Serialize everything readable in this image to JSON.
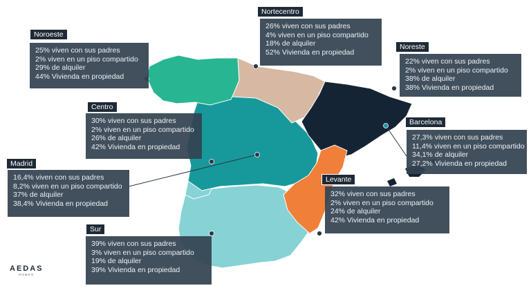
{
  "colors": {
    "noroeste": "#27b592",
    "nortecentro": "#d7b8a3",
    "noreste": "#152434",
    "centro": "#17999b",
    "levante": "#f07f39",
    "sur": "#86d2d5",
    "box": "#344351",
    "line": "#2b3a48"
  },
  "regions": [
    {
      "key": "noroeste",
      "tag": "Noroeste",
      "lines": [
        "25% viven con sus padres",
        "2% viven en un piso compartido",
        "29% de alquiler",
        "44% Vivienda en propiedad"
      ]
    },
    {
      "key": "nortecentro",
      "tag": "Nortecentro",
      "lines": [
        "26% viven con sus padres",
        "4% viven en un piso compartido",
        "18% de alquiler",
        "52% Vivienda en propiedad"
      ]
    },
    {
      "key": "noreste",
      "tag": "Noreste",
      "lines": [
        "22% viven con sus padres",
        "2% viven en un piso compartido",
        "38% de alquiler",
        "38% Vivienda en propiedad"
      ]
    },
    {
      "key": "centro",
      "tag": "Centro",
      "lines": [
        "30% viven con sus padres",
        "2% viven en un piso compartido",
        "26% de alquiler",
        "42% Vivienda en propiedad"
      ]
    },
    {
      "key": "barcelona",
      "tag": "Barcelona",
      "lines": [
        "27,3% viven con sus padres",
        "11,4% viven en un piso compartido",
        "34,1% de alquiler",
        "27,2% Vivienda en propiedad"
      ]
    },
    {
      "key": "madrid",
      "tag": "Madrid",
      "lines": [
        "16,4% viven con sus padres",
        "8,2% viven en un piso compartido",
        "37% de alquiler",
        "38,4% Vivienda en propiedad"
      ]
    },
    {
      "key": "levante",
      "tag": "Levante",
      "lines": [
        "32% viven con sus padres",
        "2% viven en un piso compartido",
        "24% de alquiler",
        "42% Vivienda en propiedad"
      ]
    },
    {
      "key": "sur",
      "tag": "Sur",
      "lines": [
        "39% viven con sus padres",
        "3% viven en un piso compartido",
        "19% de alquiler",
        "39% Vivienda en propiedad"
      ]
    }
  ],
  "logo": {
    "brand": "AEDAS",
    "sub": "HOMES"
  }
}
